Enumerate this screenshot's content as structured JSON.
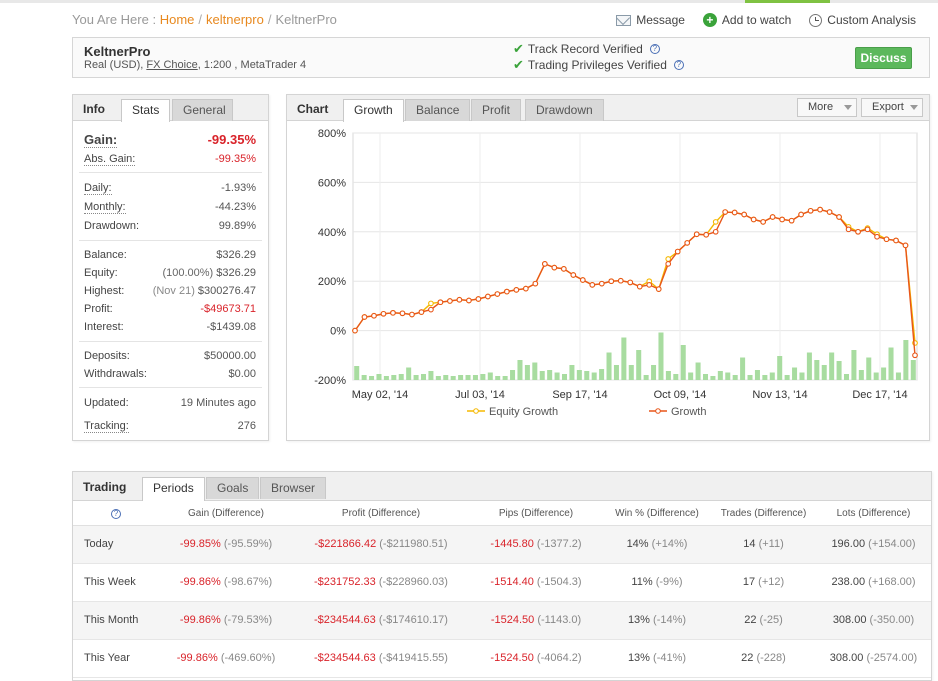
{
  "breadcrumb": {
    "prefix": "You Are Here :",
    "home": "Home",
    "mid": "keltnerpro",
    "current": "KeltnerPro",
    "sep": "/"
  },
  "top_actions": {
    "message": "Message",
    "watch": "Add to watch",
    "custom": "Custom Analysis"
  },
  "account": {
    "name": "KeltnerPro",
    "type": "Real (USD),",
    "broker": "FX Choice",
    "details": ", 1:200 , MetaTrader 4",
    "verified_1": "Track Record Verified",
    "verified_2": "Trading Privileges Verified",
    "discuss": "Discuss"
  },
  "info_tabs": {
    "title": "Info",
    "t1": "Stats",
    "t2": "General"
  },
  "info": {
    "gain_label": "Gain:",
    "gain": "-99.35%",
    "abs_gain_label": "Abs. Gain:",
    "abs_gain": "-99.35%",
    "daily_label": "Daily:",
    "daily": "-1.93%",
    "monthly_label": "Monthly:",
    "monthly": "-44.23%",
    "drawdown_label": "Drawdown:",
    "drawdown": "99.89%",
    "balance_label": "Balance:",
    "balance": "$326.29",
    "equity_label": "Equity:",
    "equity_pct": "(100.00%)",
    "equity": "$326.29",
    "highest_label": "Highest:",
    "highest_date": "(Nov 21)",
    "highest": "$300276.47",
    "profit_label": "Profit:",
    "profit": "-$49673.71",
    "interest_label": "Interest:",
    "interest": "-$1439.08",
    "deposits_label": "Deposits:",
    "deposits": "$50000.00",
    "withdrawals_label": "Withdrawals:",
    "withdrawals": "$0.00",
    "updated_label": "Updated:",
    "updated": "19 Minutes ago",
    "tracking_label": "Tracking:",
    "tracking": "276"
  },
  "chart_tabs": {
    "title": "Chart",
    "t1": "Growth",
    "t2": "Balance",
    "t3": "Profit",
    "t4": "Drawdown",
    "more": "More",
    "export": "Export"
  },
  "chart_data": {
    "type": "line",
    "title": "",
    "ylim": [
      -200,
      800
    ],
    "y_ticks": [
      "800%",
      "600%",
      "400%",
      "200%",
      "0%",
      "-200%"
    ],
    "x_ticks": [
      "May 02, '14",
      "Jul 03, '14",
      "Sep 17, '14",
      "Oct 09, '14",
      "Nov 13, '14",
      "Dec 17, '14"
    ],
    "legend": "bottom-center",
    "grid": true,
    "colors": {
      "growth": "#e8561a",
      "equity": "#f5b800",
      "bars": "#a8dca0"
    },
    "series": [
      {
        "name": "Growth",
        "values": [
          0,
          55,
          60,
          68,
          72,
          70,
          65,
          75,
          85,
          115,
          120,
          125,
          122,
          128,
          138,
          148,
          158,
          165,
          170,
          190,
          270,
          255,
          250,
          225,
          205,
          185,
          190,
          200,
          202,
          195,
          178,
          185,
          168,
          270,
          320,
          355,
          390,
          388,
          400,
          480,
          478,
          470,
          450,
          440,
          460,
          450,
          445,
          470,
          485,
          490,
          480,
          460,
          410,
          400,
          410,
          380,
          370,
          365,
          345,
          -100
        ]
      },
      {
        "name": "Equity Growth",
        "values": [
          0,
          55,
          60,
          68,
          72,
          70,
          65,
          75,
          110,
          115,
          120,
          125,
          122,
          128,
          138,
          148,
          158,
          165,
          170,
          190,
          270,
          255,
          250,
          225,
          205,
          185,
          190,
          200,
          202,
          195,
          178,
          200,
          168,
          290,
          320,
          355,
          390,
          388,
          440,
          480,
          478,
          470,
          450,
          440,
          460,
          450,
          445,
          470,
          485,
          490,
          480,
          460,
          420,
          400,
          415,
          390,
          370,
          365,
          345,
          -50
        ]
      }
    ],
    "bars": [
      28,
      10,
      8,
      12,
      8,
      10,
      12,
      25,
      10,
      12,
      18,
      8,
      10,
      8,
      10,
      10,
      10,
      12,
      15,
      8,
      8,
      20,
      40,
      30,
      35,
      18,
      20,
      15,
      12,
      30,
      20,
      18,
      15,
      22,
      55,
      30,
      85,
      30,
      60,
      10,
      30,
      95,
      18,
      12,
      70,
      15,
      35,
      12,
      8,
      18,
      15,
      10,
      45,
      10,
      20,
      10,
      15,
      48,
      10,
      25,
      15,
      55,
      40,
      30,
      55,
      38,
      12,
      60,
      20,
      45,
      15,
      25,
      65,
      15,
      80,
      40
    ]
  },
  "trading": {
    "title": "Trading",
    "t1": "Periods",
    "t2": "Goals",
    "t3": "Browser",
    "headers": [
      "Gain (Difference)",
      "Profit (Difference)",
      "Pips (Difference)",
      "Win % (Difference)",
      "Trades (Difference)",
      "Lots (Difference)"
    ],
    "rows": [
      {
        "period": "Today",
        "gain": "-99.85%",
        "gain_d": "(-95.59%)",
        "profit": "-$221866.42",
        "profit_d": "(-$211980.51)",
        "pips": "-1445.80",
        "pips_d": "(-1377.2)",
        "win": "14%",
        "win_d": "(+14%)",
        "trades": "14",
        "trades_d": "(+11)",
        "lots": "196.00",
        "lots_d": "(+154.00)"
      },
      {
        "period": "This Week",
        "gain": "-99.86%",
        "gain_d": "(-98.67%)",
        "profit": "-$231752.33",
        "profit_d": "(-$228960.03)",
        "pips": "-1514.40",
        "pips_d": "(-1504.3)",
        "win": "11%",
        "win_d": "(-9%)",
        "trades": "17",
        "trades_d": "(+12)",
        "lots": "238.00",
        "lots_d": "(+168.00)"
      },
      {
        "period": "This Month",
        "gain": "-99.86%",
        "gain_d": "(-79.53%)",
        "profit": "-$234544.63",
        "profit_d": "(-$174610.17)",
        "pips": "-1524.50",
        "pips_d": "(-1143.0)",
        "win": "13%",
        "win_d": "(-14%)",
        "trades": "22",
        "trades_d": "(-25)",
        "lots": "308.00",
        "lots_d": "(-350.00)"
      },
      {
        "period": "This Year",
        "gain": "-99.86%",
        "gain_d": "(-469.60%)",
        "profit": "-$234544.63",
        "profit_d": "(-$419415.55)",
        "pips": "-1524.50",
        "pips_d": "(-4064.2)",
        "win": "13%",
        "win_d": "(-41%)",
        "trades": "22",
        "trades_d": "(-228)",
        "lots": "308.00",
        "lots_d": "(-2574.00)"
      }
    ]
  }
}
